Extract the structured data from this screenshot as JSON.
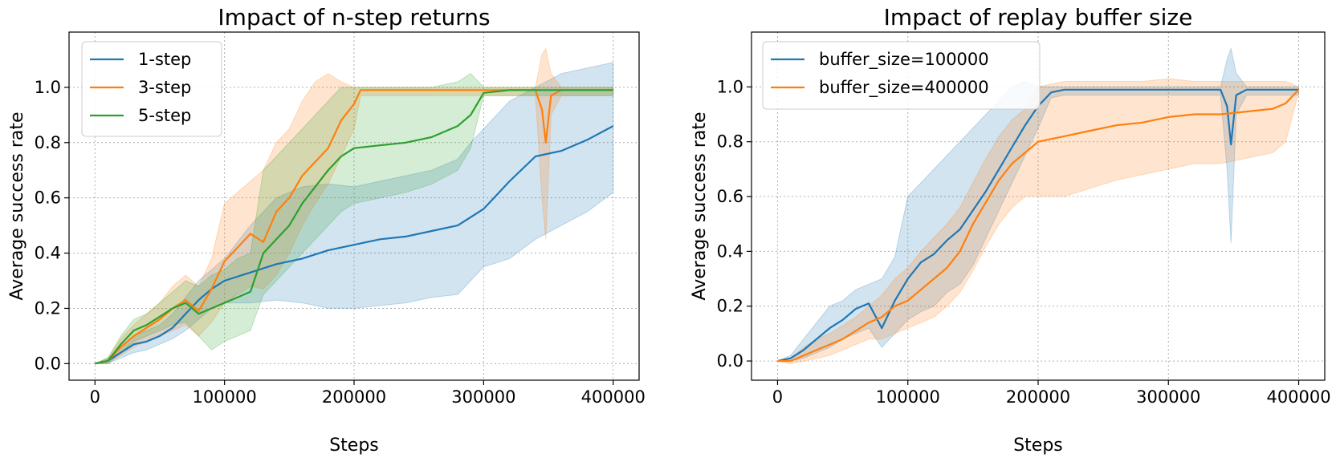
{
  "chart_data": [
    {
      "type": "line",
      "title": "Impact of n-step returns",
      "xlabel": "Steps",
      "ylabel": "Average success rate",
      "xlim": [
        -20000,
        420000
      ],
      "ylim": [
        -0.06,
        1.2
      ],
      "xticks": [
        0,
        100000,
        200000,
        300000,
        400000
      ],
      "xtick_labels": [
        "0",
        "100000",
        "200000",
        "300000",
        "400000"
      ],
      "yticks": [
        0.0,
        0.2,
        0.4,
        0.6,
        0.8,
        1.0
      ],
      "ytick_labels": [
        "0.0",
        "0.2",
        "0.4",
        "0.6",
        "0.8",
        "1.0"
      ],
      "grid": true,
      "legend_position": "top-left",
      "series": [
        {
          "name": "1-step",
          "color": "#1f77b4",
          "x": [
            0,
            10000,
            20000,
            30000,
            40000,
            50000,
            60000,
            70000,
            80000,
            90000,
            100000,
            120000,
            140000,
            160000,
            180000,
            200000,
            220000,
            240000,
            260000,
            280000,
            290000,
            300000,
            320000,
            340000,
            360000,
            380000,
            400000
          ],
          "y": [
            0,
            0.01,
            0.04,
            0.07,
            0.08,
            0.1,
            0.13,
            0.18,
            0.23,
            0.27,
            0.3,
            0.33,
            0.36,
            0.38,
            0.41,
            0.43,
            0.45,
            0.46,
            0.48,
            0.5,
            0.53,
            0.56,
            0.66,
            0.75,
            0.77,
            0.81,
            0.86
          ],
          "lower": [
            0,
            0,
            0.02,
            0.04,
            0.05,
            0.07,
            0.09,
            0.12,
            0.16,
            0.2,
            0.22,
            0.22,
            0.23,
            0.22,
            0.2,
            0.2,
            0.21,
            0.22,
            0.24,
            0.25,
            0.3,
            0.35,
            0.38,
            0.45,
            0.5,
            0.55,
            0.62
          ],
          "upper": [
            0,
            0.02,
            0.06,
            0.1,
            0.12,
            0.14,
            0.18,
            0.24,
            0.3,
            0.34,
            0.38,
            0.5,
            0.6,
            0.64,
            0.65,
            0.64,
            0.66,
            0.68,
            0.7,
            0.74,
            0.8,
            0.85,
            0.95,
            1.0,
            1.05,
            1.07,
            1.09
          ]
        },
        {
          "name": "3-step",
          "color": "#ff7f0e",
          "x": [
            0,
            10000,
            20000,
            30000,
            40000,
            50000,
            60000,
            70000,
            80000,
            90000,
            100000,
            110000,
            120000,
            130000,
            140000,
            150000,
            160000,
            170000,
            180000,
            190000,
            200000,
            205000,
            220000,
            240000,
            260000,
            280000,
            300000,
            320000,
            340000,
            345000,
            348000,
            352000,
            360000,
            380000,
            400000
          ],
          "y": [
            0,
            0.01,
            0.06,
            0.1,
            0.13,
            0.16,
            0.2,
            0.23,
            0.19,
            0.27,
            0.37,
            0.42,
            0.47,
            0.44,
            0.55,
            0.6,
            0.68,
            0.73,
            0.78,
            0.88,
            0.94,
            0.99,
            0.99,
            0.99,
            0.99,
            0.99,
            0.99,
            0.99,
            0.99,
            0.92,
            0.8,
            0.97,
            0.99,
            0.99,
            0.99
          ],
          "lower": [
            0,
            0,
            0.03,
            0.06,
            0.08,
            0.1,
            0.12,
            0.14,
            0.1,
            0.15,
            0.22,
            0.25,
            0.28,
            0.27,
            0.32,
            0.4,
            0.5,
            0.58,
            0.65,
            0.75,
            0.85,
            0.97,
            0.97,
            0.97,
            0.97,
            0.97,
            0.97,
            0.97,
            0.97,
            0.6,
            0.45,
            0.9,
            0.97,
            0.97,
            0.97
          ],
          "upper": [
            0,
            0.02,
            0.09,
            0.14,
            0.18,
            0.22,
            0.28,
            0.32,
            0.28,
            0.38,
            0.58,
            0.62,
            0.66,
            0.7,
            0.8,
            0.85,
            0.95,
            1.02,
            1.05,
            1.02,
            1.0,
            1.0,
            1.0,
            1.0,
            1.0,
            1.0,
            1.0,
            1.0,
            1.0,
            1.12,
            1.14,
            1.05,
            1.0,
            1.0,
            1.0
          ]
        },
        {
          "name": "5-step",
          "color": "#2ca02c",
          "x": [
            0,
            10000,
            20000,
            30000,
            40000,
            50000,
            60000,
            70000,
            80000,
            90000,
            100000,
            110000,
            120000,
            130000,
            140000,
            150000,
            160000,
            170000,
            180000,
            190000,
            200000,
            220000,
            240000,
            260000,
            280000,
            290000,
            300000,
            320000,
            340000,
            360000,
            380000,
            400000
          ],
          "y": [
            0,
            0.01,
            0.07,
            0.12,
            0.14,
            0.17,
            0.2,
            0.22,
            0.18,
            0.2,
            0.22,
            0.24,
            0.26,
            0.4,
            0.45,
            0.5,
            0.58,
            0.64,
            0.7,
            0.75,
            0.78,
            0.79,
            0.8,
            0.82,
            0.86,
            0.9,
            0.98,
            0.99,
            0.99,
            0.99,
            0.99,
            0.99
          ],
          "lower": [
            0,
            0,
            0.04,
            0.08,
            0.1,
            0.12,
            0.14,
            0.15,
            0.1,
            0.05,
            0.08,
            0.1,
            0.12,
            0.25,
            0.3,
            0.35,
            0.4,
            0.45,
            0.5,
            0.55,
            0.58,
            0.6,
            0.62,
            0.65,
            0.7,
            0.78,
            0.97,
            0.97,
            0.97,
            0.97,
            0.97,
            0.97
          ],
          "upper": [
            0,
            0.02,
            0.1,
            0.16,
            0.18,
            0.22,
            0.26,
            0.3,
            0.28,
            0.32,
            0.34,
            0.38,
            0.4,
            0.7,
            0.75,
            0.8,
            0.85,
            0.9,
            0.95,
            1.0,
            1.0,
            1.0,
            1.0,
            1.0,
            1.02,
            1.05,
            1.0,
            1.0,
            1.0,
            1.0,
            1.0,
            1.0
          ]
        }
      ]
    },
    {
      "type": "line",
      "title": "Impact of replay buffer size",
      "xlabel": "Steps",
      "ylabel": "Average success rate",
      "xlim": [
        -20000,
        420000
      ],
      "ylim": [
        -0.07,
        1.2
      ],
      "xticks": [
        0,
        100000,
        200000,
        300000,
        400000
      ],
      "xtick_labels": [
        "0",
        "100000",
        "200000",
        "300000",
        "400000"
      ],
      "yticks": [
        0.0,
        0.2,
        0.4,
        0.6,
        0.8,
        1.0
      ],
      "ytick_labels": [
        "0.0",
        "0.2",
        "0.4",
        "0.6",
        "0.8",
        "1.0"
      ],
      "grid": true,
      "legend_position": "top-left",
      "series": [
        {
          "name": "buffer_size=100000",
          "color": "#1f77b4",
          "x": [
            0,
            10000,
            20000,
            30000,
            40000,
            50000,
            60000,
            70000,
            80000,
            90000,
            100000,
            110000,
            120000,
            130000,
            140000,
            150000,
            160000,
            170000,
            180000,
            190000,
            200000,
            210000,
            220000,
            240000,
            260000,
            280000,
            300000,
            320000,
            340000,
            345000,
            348000,
            352000,
            360000,
            380000,
            400000
          ],
          "y": [
            0,
            0.01,
            0.04,
            0.08,
            0.12,
            0.15,
            0.19,
            0.21,
            0.12,
            0.22,
            0.3,
            0.36,
            0.39,
            0.44,
            0.48,
            0.55,
            0.62,
            0.7,
            0.78,
            0.86,
            0.93,
            0.98,
            0.99,
            0.99,
            0.99,
            0.99,
            0.99,
            0.99,
            0.99,
            0.93,
            0.79,
            0.97,
            0.99,
            0.99,
            0.99
          ],
          "lower": [
            0,
            0,
            0.01,
            0.03,
            0.05,
            0.08,
            0.1,
            0.12,
            0.05,
            0.1,
            0.15,
            0.18,
            0.2,
            0.25,
            0.28,
            0.35,
            0.45,
            0.55,
            0.65,
            0.75,
            0.85,
            0.96,
            0.97,
            0.97,
            0.97,
            0.97,
            0.97,
            0.97,
            0.97,
            0.7,
            0.43,
            0.9,
            0.97,
            0.97,
            0.97
          ],
          "upper": [
            0,
            0.02,
            0.08,
            0.14,
            0.2,
            0.22,
            0.26,
            0.28,
            0.3,
            0.38,
            0.6,
            0.65,
            0.7,
            0.75,
            0.8,
            0.85,
            0.9,
            0.95,
            1.0,
            1.02,
            1.0,
            1.0,
            1.0,
            1.0,
            1.0,
            1.0,
            1.0,
            1.0,
            1.0,
            1.1,
            1.14,
            1.05,
            1.0,
            1.0,
            1.0
          ]
        },
        {
          "name": "buffer_size=400000",
          "color": "#ff7f0e",
          "x": [
            0,
            10000,
            20000,
            30000,
            40000,
            50000,
            60000,
            70000,
            80000,
            90000,
            100000,
            110000,
            120000,
            130000,
            140000,
            150000,
            160000,
            170000,
            180000,
            190000,
            200000,
            220000,
            240000,
            260000,
            280000,
            300000,
            320000,
            340000,
            360000,
            380000,
            390000,
            400000
          ],
          "y": [
            0,
            0.0,
            0.02,
            0.04,
            0.06,
            0.08,
            0.11,
            0.14,
            0.16,
            0.2,
            0.22,
            0.26,
            0.3,
            0.34,
            0.4,
            0.5,
            0.58,
            0.66,
            0.72,
            0.76,
            0.8,
            0.82,
            0.84,
            0.86,
            0.87,
            0.89,
            0.9,
            0.9,
            0.91,
            0.92,
            0.94,
            0.99
          ],
          "lower": [
            0,
            -0.01,
            0.0,
            0.01,
            0.02,
            0.04,
            0.06,
            0.08,
            0.08,
            0.1,
            0.12,
            0.14,
            0.16,
            0.2,
            0.25,
            0.33,
            0.42,
            0.5,
            0.56,
            0.6,
            0.6,
            0.6,
            0.63,
            0.66,
            0.68,
            0.7,
            0.72,
            0.72,
            0.74,
            0.76,
            0.8,
            0.98
          ],
          "upper": [
            0,
            0.01,
            0.05,
            0.08,
            0.1,
            0.13,
            0.16,
            0.2,
            0.24,
            0.3,
            0.34,
            0.4,
            0.45,
            0.5,
            0.56,
            0.65,
            0.74,
            0.82,
            0.88,
            0.92,
            1.0,
            1.02,
            1.02,
            1.02,
            1.02,
            1.03,
            1.02,
            1.02,
            1.02,
            1.02,
            1.02,
            1.0
          ]
        }
      ]
    }
  ]
}
